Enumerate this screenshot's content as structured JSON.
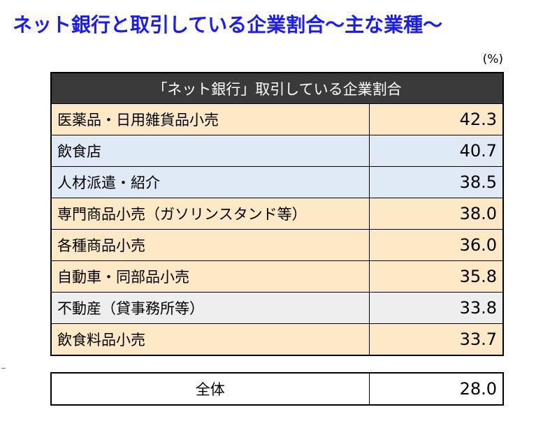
{
  "title": "ネット銀行と取引している企業割合～主な業種～",
  "unit": "(%)",
  "table": {
    "header": "「ネット銀行」取引している企業割合",
    "rows": [
      {
        "label": "医薬品・日用雑貨品小売",
        "value": "42.3",
        "bg": "#fde9c5"
      },
      {
        "label": "飲食店",
        "value": "40.7",
        "bg": "#dfeaf6"
      },
      {
        "label": "人材派遣・紹介",
        "value": "38.5",
        "bg": "#dfeaf6"
      },
      {
        "label": "専門商品小売（ガソリンスタンド等）",
        "value": "38.0",
        "bg": "#fde9c5"
      },
      {
        "label": "各種商品小売",
        "value": "36.0",
        "bg": "#fde9c5"
      },
      {
        "label": "自動車・同部品小売",
        "value": "35.8",
        "bg": "#fde9c5"
      },
      {
        "label": "不動産（貸事務所等）",
        "value": "33.8",
        "bg": "#eeeeee"
      },
      {
        "label": "飲食料品小売",
        "value": "33.7",
        "bg": "#fde9c5"
      }
    ]
  },
  "total": {
    "label": "全体",
    "value": "28.0"
  }
}
